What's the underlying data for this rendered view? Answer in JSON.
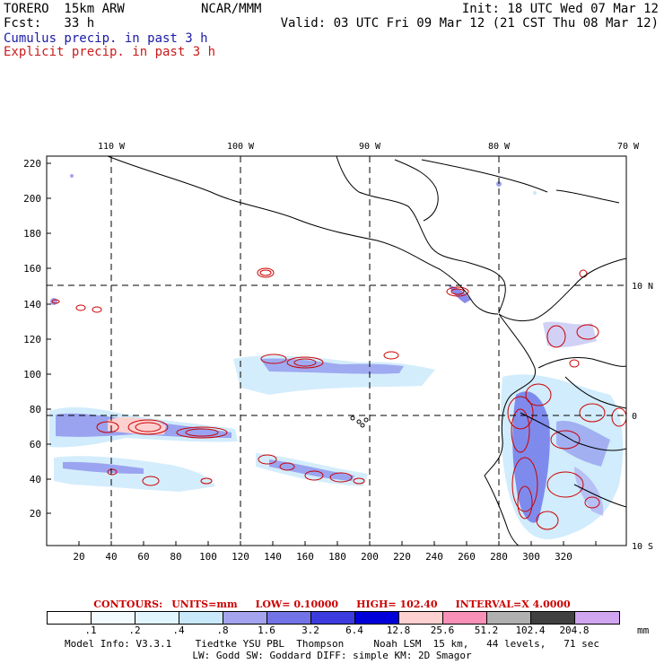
{
  "header": {
    "model": "TORERO  15km ARW",
    "org": "NCAR/MMM",
    "init": "Init: 18 UTC Wed 07 Mar 12",
    "fcst": "Fcst:   33 h",
    "valid": "Valid: 03 UTC Fri 09 Mar 12 (21 CST Thu 08 Mar 12)",
    "legend_cumulus": "Cumulus precip. in past 3 h",
    "legend_explicit": "Explicit precip. in past 3 h"
  },
  "colors": {
    "cumulus": "#0000cc",
    "explicit": "#cc0000",
    "grid": "#000000"
  },
  "map": {
    "lon_labels": [
      "110 W",
      "100 W",
      "90 W",
      "80 W",
      "70 W"
    ],
    "lat_labels": [
      "10 N",
      "0",
      "10 S"
    ],
    "x_ticks": [
      "20",
      "40",
      "60",
      "80",
      "100",
      "120",
      "140",
      "160",
      "180",
      "200",
      "220",
      "240",
      "260",
      "280",
      "300",
      "320"
    ],
    "y_ticks": [
      "20",
      "40",
      "60",
      "80",
      "100",
      "120",
      "140",
      "160",
      "180",
      "200",
      "220"
    ]
  },
  "contours": {
    "title": "CONTOURS:",
    "units": "UNITS=mm",
    "low": "LOW= 0.10000",
    "high": "HIGH=  102.40",
    "interval": "INTERVAL=X  4.0000"
  },
  "colorbar": {
    "colors": [
      "#ffffff",
      "#f2fbff",
      "#e2f6ff",
      "#c9e9fb",
      "#a3a3ee",
      "#7373e8",
      "#3c3cde",
      "#0000d8",
      "#ffd0d0",
      "#f890b8",
      "#b0b0b0",
      "#404040",
      "#d0a6f0"
    ],
    "labels": [
      ".1",
      ".2",
      ".4",
      ".8",
      "1.6",
      "3.2",
      "6.4",
      "12.8",
      "25.6",
      "51.2",
      "102.4",
      "204.8"
    ],
    "unit": "mm"
  },
  "footer": {
    "line1": "Model Info: V3.3.1    Tiedtke YSU PBL  Thompson     Noah LSM  15 km,   44 levels,   71 sec",
    "line2": "LW: Godd SW: Goddard DIFF: simple KM: 2D Smagor"
  }
}
